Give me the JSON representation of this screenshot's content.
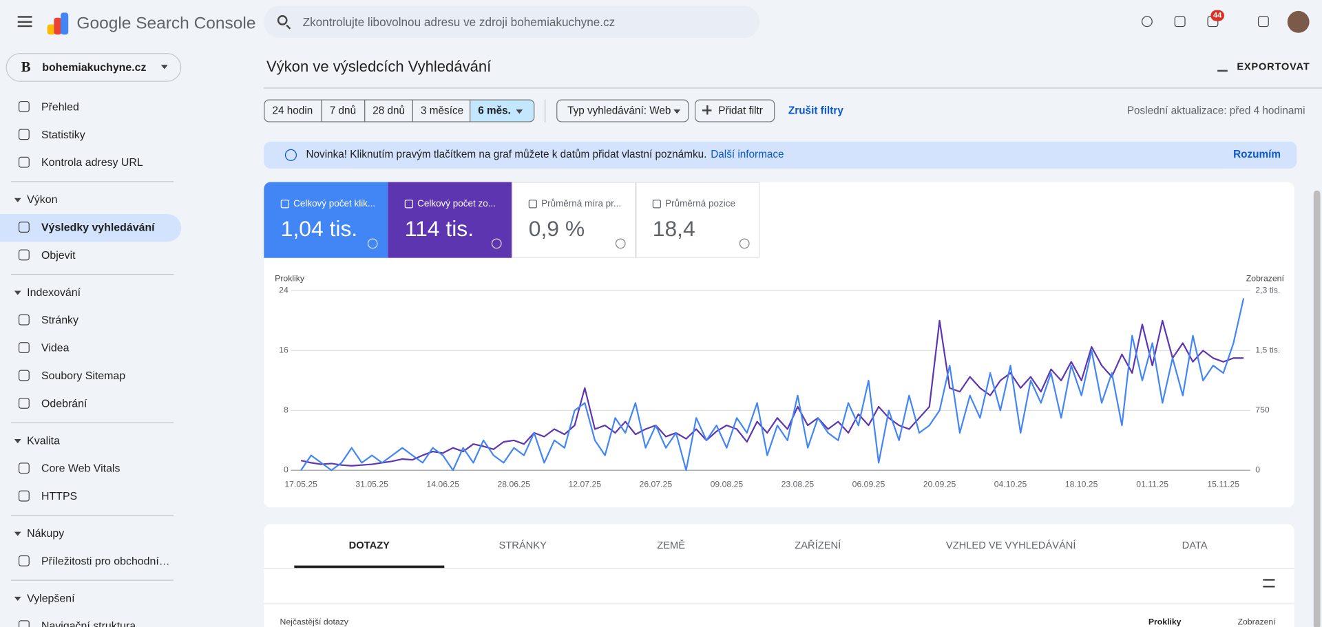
{
  "header": {
    "product": "Google Search Console",
    "search_placeholder": "Zkontrolujte libovolnou adresu ve zdroji bohemiakuchyne.cz",
    "notifications": 44
  },
  "property": {
    "logo": "B",
    "name": "bohemiakuchyne.cz"
  },
  "nav": {
    "top": [
      "Přehled",
      "Statistiky",
      "Kontrola adresy URL"
    ],
    "sections": [
      {
        "title": "Výkon",
        "items": [
          "Výsledky vyhledávání",
          "Objevit"
        ]
      },
      {
        "title": "Indexování",
        "items": [
          "Stránky",
          "Videa",
          "Soubory Sitemap",
          "Odebrání"
        ]
      },
      {
        "title": "Kvalita",
        "items": [
          "Core Web Vitals",
          "HTTPS"
        ]
      },
      {
        "title": "Nákupy",
        "items": [
          "Příležitosti pro obchodní…"
        ]
      },
      {
        "title": "Vylepšení",
        "items": [
          "Navigační struktura"
        ]
      }
    ]
  },
  "page": {
    "title": "Výkon ve výsledcích Vyhledávání",
    "export": "EXPORTOVAT",
    "date_ranges": [
      "24 hodin",
      "7 dnů",
      "28 dnů",
      "3 měsíce",
      "6 měs."
    ],
    "search_type": "Typ vyhledávání: Web",
    "add_filter": "Přidat filtr",
    "clear_filters": "Zrušit filtry",
    "last_update": "Poslední aktualizace: před 4 hodinami"
  },
  "banner": {
    "text": "Novinka! Kliknutím pravým tlačítkem na graf můžete k datům přidat vlastní poznámku.",
    "link": "Další informace",
    "dismiss": "Rozumím"
  },
  "metrics": [
    {
      "label": "Celkový počet klik...",
      "value": "1,04 tis."
    },
    {
      "label": "Celkový počet zo...",
      "value": "114 tis."
    },
    {
      "label": "Průměrná míra pr...",
      "value": "0,9 %"
    },
    {
      "label": "Průměrná pozice",
      "value": "18,4"
    }
  ],
  "chart_data": {
    "type": "line",
    "y_label": "Prokliky",
    "y2_label": "Zobrazení",
    "categories": [
      "17.05.25",
      null,
      null,
      null,
      null,
      null,
      null,
      "31.05.25",
      null,
      null,
      null,
      null,
      null,
      null,
      "14.06.25",
      null,
      null,
      null,
      null,
      null,
      null,
      "28.06.25",
      null,
      null,
      null,
      null,
      null,
      null,
      "12.07.25",
      null,
      null,
      null,
      null,
      null,
      null,
      "26.07.25",
      null,
      null,
      null,
      null,
      null,
      null,
      "09.08.25",
      null,
      null,
      null,
      null,
      null,
      null,
      "23.08.25",
      null,
      null,
      null,
      null,
      null,
      null,
      "06.09.25",
      null,
      null,
      null,
      null,
      null,
      null,
      "20.09.25",
      null,
      null,
      null,
      null,
      null,
      null,
      "04.10.25",
      null,
      null,
      null,
      null,
      null,
      null,
      "18.10.25",
      null,
      null,
      null,
      null,
      null,
      null,
      "01.11.25",
      null,
      null,
      null,
      null,
      null,
      null,
      "15.11.25",
      null,
      null
    ],
    "ylim": [
      0,
      24
    ],
    "yticks": [
      0,
      8,
      16,
      24
    ],
    "y2lim": [
      0,
      2250
    ],
    "y2ticks": [
      0,
      750,
      {
        "value": 1500,
        "label": "1,5 tis."
      },
      {
        "value": 2250,
        "label": "2,3 tis."
      }
    ],
    "grid": true,
    "series": [
      {
        "name": "Zobrazení",
        "color": "#5e35b1",
        "axis": "y2",
        "values": [
          122,
          94,
          75,
          84,
          66,
          56,
          66,
          75,
          94,
          113,
          141,
          131,
          188,
          234,
          216,
          281,
          234,
          328,
          300,
          263,
          356,
          375,
          328,
          469,
          422,
          516,
          450,
          563,
          1031,
          516,
          563,
          469,
          609,
          450,
          516,
          563,
          422,
          469,
          394,
          516,
          375,
          488,
          563,
          516,
          356,
          609,
          469,
          656,
          516,
          797,
          563,
          656,
          516,
          609,
          469,
          703,
          563,
          797,
          656,
          563,
          516,
          656,
          797,
          1875,
          1031,
          984,
          1172,
          1031,
          938,
          1125,
          1219,
          1031,
          1172,
          984,
          1266,
          1125,
          1359,
          1125,
          1547,
          1313,
          1172,
          1453,
          1219,
          1828,
          1313,
          1875,
          1406,
          1594,
          1359,
          1500,
          1406,
          1359,
          1406,
          1406
        ]
      },
      {
        "name": "Prokliky",
        "color": "#4285f4",
        "values": [
          0,
          2,
          1,
          0,
          1,
          3,
          1,
          2,
          1,
          2,
          3,
          2,
          1,
          3,
          2,
          0,
          3,
          1,
          4,
          2,
          1,
          3,
          2,
          5,
          1,
          4,
          3,
          8,
          9,
          4,
          2,
          7,
          5,
          9,
          3,
          6,
          3,
          5,
          0,
          7,
          4,
          6,
          3,
          7,
          5,
          9,
          2,
          6,
          4,
          10,
          3,
          7,
          5,
          4,
          9,
          6,
          12,
          1,
          8,
          4,
          10,
          5,
          6,
          8,
          14,
          5,
          10,
          7,
          13,
          8,
          14,
          5,
          12,
          9,
          13,
          7,
          14,
          10,
          16,
          9,
          13,
          6,
          18,
          12,
          17,
          9,
          15,
          10,
          18,
          12,
          14,
          13,
          17,
          23
        ]
      }
    ]
  },
  "tabs": [
    "DOTAZY",
    "STRÁNKY",
    "ZEMĚ",
    "ZAŘÍZENÍ",
    "VZHLED VE VYHLEDÁVÁNÍ",
    "DATA"
  ],
  "table": {
    "title": "Nejčastější dotazy",
    "columns": [
      "Prokliky",
      "Zobrazení"
    ]
  }
}
